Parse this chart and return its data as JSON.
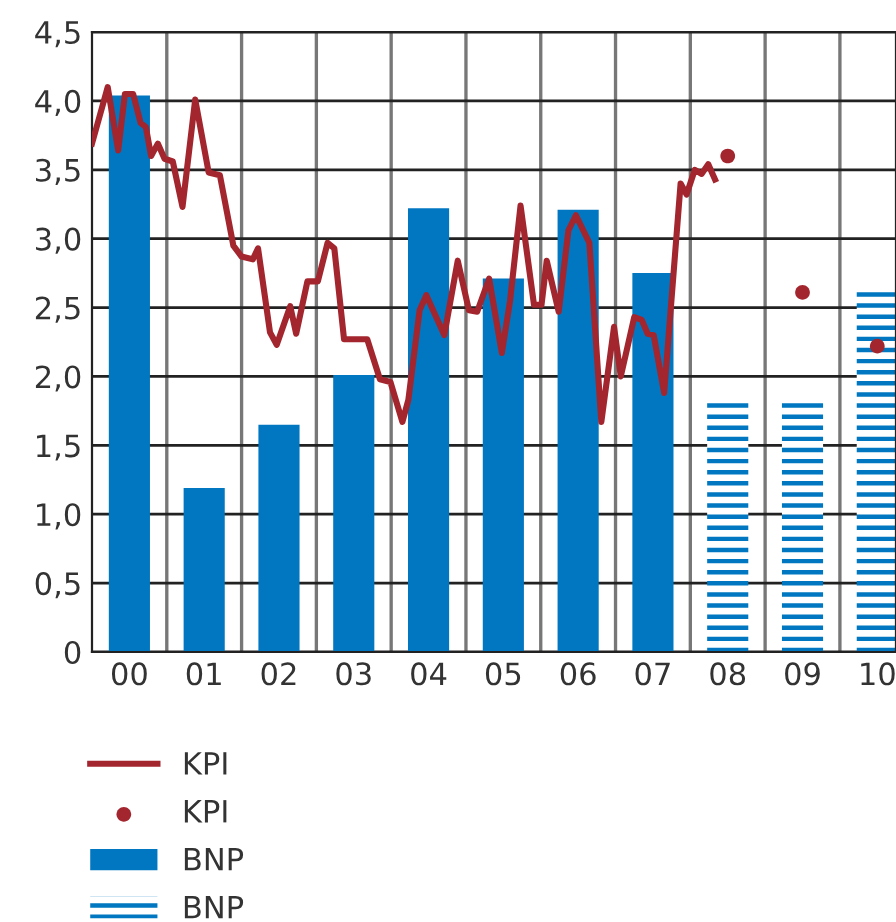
{
  "chart_data": {
    "type": "bar",
    "x": [
      0,
      1,
      2,
      3,
      4,
      5,
      6,
      7,
      8,
      9,
      10
    ],
    "xlim": [
      -0.5,
      10.25
    ],
    "xticks": [
      {
        "value": 0,
        "label": "00"
      },
      {
        "value": 0.5,
        "label": null
      },
      {
        "value": 1,
        "label": "01"
      },
      {
        "value": 1.5,
        "label": null
      },
      {
        "value": 2,
        "label": "02"
      },
      {
        "value": 2.5,
        "label": null
      },
      {
        "value": 3,
        "label": "03"
      },
      {
        "value": 3.5,
        "label": null
      },
      {
        "value": 4,
        "label": "04"
      },
      {
        "value": 4.5,
        "label": null
      },
      {
        "value": 5,
        "label": "05"
      },
      {
        "value": 5.5,
        "label": null
      },
      {
        "value": 6,
        "label": "06"
      },
      {
        "value": 6.5,
        "label": null
      },
      {
        "value": 7,
        "label": "07"
      },
      {
        "value": 7.5,
        "label": null
      },
      {
        "value": 8,
        "label": "08"
      },
      {
        "value": 8.5,
        "label": null
      },
      {
        "value": 9,
        "label": "09"
      },
      {
        "value": 9.5,
        "label": null
      },
      {
        "value": 10,
        "label": "10"
      }
    ],
    "series": [
      {
        "name": "KPI",
        "type": "line",
        "color": "#a3262e",
        "x": [
          -0.5,
          -0.29,
          -0.15,
          -0.06,
          0.05,
          0.15,
          0.22,
          0.29,
          0.38,
          0.47,
          0.58,
          0.71,
          0.88,
          1.06,
          1.21,
          1.39,
          1.5,
          1.65,
          1.72,
          1.88,
          1.97,
          2.15,
          2.23,
          2.38,
          2.52,
          2.65,
          2.74,
          2.87,
          3.18,
          3.35,
          3.49,
          3.65,
          3.73,
          3.88,
          3.97,
          4.21,
          4.39,
          4.54,
          4.65,
          4.81,
          4.98,
          5.09,
          5.23,
          5.41,
          5.51,
          5.58,
          5.74,
          5.87,
          5.97,
          6.15,
          6.31,
          6.48,
          6.57,
          6.75,
          6.85,
          6.93,
          7.01,
          7.15,
          7.37,
          7.45,
          7.56,
          7.65,
          7.74,
          7.83
        ],
        "values": [
          3.69,
          4.1,
          3.64,
          4.05,
          4.05,
          3.84,
          3.81,
          3.6,
          3.69,
          3.58,
          3.56,
          3.23,
          4.01,
          3.48,
          3.46,
          2.95,
          2.87,
          2.85,
          2.93,
          2.32,
          2.23,
          2.51,
          2.31,
          2.69,
          2.69,
          2.97,
          2.93,
          2.27,
          2.27,
          1.98,
          1.96,
          1.67,
          1.83,
          2.48,
          2.59,
          2.3,
          2.84,
          2.48,
          2.47,
          2.71,
          2.17,
          2.55,
          3.24,
          2.52,
          2.52,
          2.84,
          2.47,
          3.06,
          3.17,
          2.97,
          1.67,
          2.36,
          2.0,
          2.43,
          2.41,
          2.31,
          2.3,
          1.88,
          3.4,
          3.32,
          3.5,
          3.47,
          3.54,
          3.43
        ]
      },
      {
        "name": "KPI",
        "type": "scatter",
        "marker": "circle",
        "color": "#a3262e",
        "x": [
          8,
          9,
          10
        ],
        "values": [
          3.6,
          2.61,
          2.22
        ]
      },
      {
        "name": "BNP",
        "color": "#0077c0",
        "values": [
          4.04,
          1.19,
          1.65,
          2.01,
          3.22,
          2.71,
          3.21,
          2.75,
          null,
          null,
          null
        ]
      },
      {
        "name": "BNP",
        "line_style": "dashed",
        "color": "#0077c0",
        "values": [
          null,
          null,
          null,
          null,
          null,
          null,
          null,
          null,
          1.81,
          1.81,
          2.64
        ]
      }
    ],
    "ylim": [
      0,
      4.5
    ],
    "yticks": [
      0,
      {
        "value": 0.5,
        "label": "0,5"
      },
      {
        "value": 1.0,
        "label": "1,0"
      },
      {
        "value": 1.5,
        "label": "1,5"
      },
      {
        "value": 2.0,
        "label": "2,0"
      },
      {
        "value": 2.5,
        "label": "2,5"
      },
      {
        "value": 3.0,
        "label": "3,0"
      },
      {
        "value": 3.5,
        "label": "3,5"
      },
      {
        "value": 4.0,
        "label": "4,0"
      },
      {
        "value": 4.5,
        "label": "4,5"
      }
    ],
    "grid": true,
    "legend": "bottom"
  }
}
